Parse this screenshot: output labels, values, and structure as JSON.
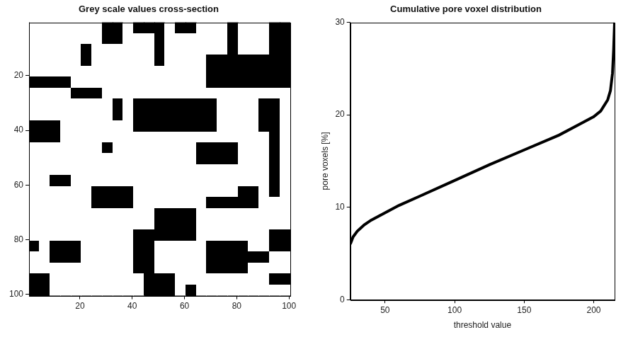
{
  "chart_data": [
    {
      "type": "heatmap",
      "title": "Grey scale values cross-section",
      "xlim": [
        0.5,
        100.5
      ],
      "ylim": [
        100.5,
        0.5
      ],
      "xticks": [
        20,
        40,
        60,
        80,
        100
      ],
      "yticks": [
        20,
        40,
        60,
        80,
        100
      ],
      "grid": false,
      "cells": [
        [
          255,
          255,
          255,
          255,
          255,
          255,
          255,
          0,
          0,
          255,
          0,
          0,
          0,
          255,
          0,
          0,
          255,
          255,
          255,
          0,
          255,
          255,
          255,
          0,
          0
        ],
        [
          255,
          255,
          255,
          255,
          255,
          255,
          255,
          0,
          0,
          255,
          255,
          255,
          0,
          255,
          255,
          255,
          255,
          255,
          255,
          0,
          255,
          255,
          255,
          0,
          0
        ],
        [
          255,
          255,
          255,
          255,
          255,
          0,
          255,
          255,
          255,
          255,
          255,
          255,
          0,
          255,
          255,
          255,
          255,
          255,
          255,
          0,
          255,
          255,
          255,
          0,
          0
        ],
        [
          255,
          255,
          255,
          255,
          255,
          0,
          255,
          255,
          255,
          255,
          255,
          255,
          0,
          255,
          255,
          255,
          255,
          0,
          0,
          0,
          0,
          0,
          0,
          0,
          0
        ],
        [
          255,
          255,
          255,
          255,
          255,
          255,
          255,
          255,
          255,
          255,
          255,
          255,
          255,
          255,
          255,
          255,
          255,
          0,
          0,
          0,
          0,
          0,
          0,
          0,
          0
        ],
        [
          0,
          0,
          0,
          0,
          255,
          255,
          255,
          255,
          255,
          255,
          255,
          255,
          255,
          255,
          255,
          255,
          255,
          0,
          0,
          0,
          0,
          0,
          0,
          0,
          0
        ],
        [
          255,
          255,
          255,
          255,
          0,
          0,
          0,
          255,
          255,
          255,
          255,
          255,
          255,
          255,
          255,
          255,
          255,
          255,
          255,
          255,
          255,
          255,
          255,
          255,
          255
        ],
        [
          255,
          255,
          255,
          255,
          255,
          255,
          255,
          255,
          0,
          255,
          0,
          0,
          0,
          0,
          0,
          0,
          0,
          0,
          255,
          255,
          255,
          255,
          0,
          0,
          255
        ],
        [
          255,
          255,
          255,
          255,
          255,
          255,
          255,
          255,
          0,
          255,
          0,
          0,
          0,
          0,
          0,
          0,
          0,
          0,
          255,
          255,
          255,
          255,
          0,
          0,
          255
        ],
        [
          0,
          0,
          0,
          255,
          255,
          255,
          255,
          255,
          255,
          255,
          0,
          0,
          0,
          0,
          0,
          0,
          0,
          0,
          255,
          255,
          255,
          255,
          0,
          0,
          255
        ],
        [
          0,
          0,
          0,
          255,
          255,
          255,
          255,
          255,
          255,
          255,
          255,
          255,
          255,
          255,
          255,
          255,
          255,
          255,
          255,
          255,
          255,
          255,
          255,
          0,
          255
        ],
        [
          255,
          255,
          255,
          255,
          255,
          255,
          255,
          0,
          255,
          255,
          255,
          255,
          255,
          255,
          255,
          255,
          0,
          0,
          0,
          0,
          255,
          255,
          255,
          0,
          255
        ],
        [
          255,
          255,
          255,
          255,
          255,
          255,
          255,
          255,
          255,
          255,
          255,
          255,
          255,
          255,
          255,
          255,
          0,
          0,
          0,
          0,
          255,
          255,
          255,
          0,
          255
        ],
        [
          255,
          255,
          255,
          255,
          255,
          255,
          255,
          255,
          255,
          255,
          255,
          255,
          255,
          255,
          255,
          255,
          255,
          255,
          255,
          255,
          255,
          255,
          255,
          0,
          255
        ],
        [
          255,
          255,
          0,
          0,
          255,
          255,
          255,
          255,
          255,
          255,
          255,
          255,
          255,
          255,
          255,
          255,
          255,
          255,
          255,
          255,
          255,
          255,
          255,
          0,
          255
        ],
        [
          255,
          255,
          255,
          255,
          255,
          255,
          0,
          0,
          0,
          0,
          255,
          255,
          255,
          255,
          255,
          255,
          255,
          255,
          255,
          255,
          0,
          0,
          255,
          0,
          255
        ],
        [
          255,
          255,
          255,
          255,
          255,
          255,
          0,
          0,
          0,
          0,
          255,
          255,
          255,
          255,
          255,
          255,
          255,
          0,
          0,
          0,
          0,
          0,
          255,
          255,
          255
        ],
        [
          255,
          255,
          255,
          255,
          255,
          255,
          255,
          255,
          255,
          255,
          255,
          255,
          0,
          0,
          0,
          0,
          255,
          255,
          255,
          255,
          255,
          255,
          255,
          255,
          255
        ],
        [
          255,
          255,
          255,
          255,
          255,
          255,
          255,
          255,
          255,
          255,
          255,
          255,
          0,
          0,
          0,
          0,
          255,
          255,
          255,
          255,
          255,
          255,
          255,
          255,
          255
        ],
        [
          255,
          255,
          255,
          255,
          255,
          255,
          255,
          255,
          255,
          255,
          0,
          0,
          0,
          0,
          0,
          0,
          255,
          255,
          255,
          255,
          255,
          255,
          255,
          0,
          0
        ],
        [
          0,
          255,
          0,
          0,
          0,
          255,
          255,
          255,
          255,
          255,
          0,
          0,
          255,
          255,
          255,
          255,
          255,
          0,
          0,
          0,
          0,
          255,
          255,
          0,
          0
        ],
        [
          255,
          255,
          0,
          0,
          0,
          255,
          255,
          255,
          255,
          255,
          0,
          0,
          255,
          255,
          255,
          255,
          255,
          0,
          0,
          0,
          0,
          0,
          0,
          255,
          255
        ],
        [
          255,
          255,
          255,
          255,
          255,
          255,
          255,
          255,
          255,
          255,
          0,
          0,
          255,
          255,
          255,
          255,
          255,
          0,
          0,
          0,
          0,
          255,
          255,
          255,
          255
        ],
        [
          0,
          0,
          255,
          255,
          255,
          255,
          255,
          255,
          255,
          255,
          255,
          0,
          0,
          0,
          255,
          255,
          255,
          255,
          255,
          255,
          255,
          255,
          255,
          0,
          0
        ],
        [
          0,
          0,
          255,
          255,
          255,
          255,
          255,
          255,
          255,
          255,
          255,
          0,
          0,
          0,
          255,
          0,
          255,
          255,
          255,
          255,
          255,
          255,
          255,
          255,
          255
        ]
      ]
    },
    {
      "type": "line",
      "title": "Cumulative pore voxel distribution",
      "x_label": "threshold value",
      "y_label": "pore voxels [%]",
      "x": [
        25,
        27,
        30,
        35,
        40,
        50,
        60,
        75,
        100,
        125,
        150,
        175,
        190,
        200,
        205,
        210,
        212,
        213.5,
        214.3,
        215
      ],
      "values": [
        6.0,
        6.8,
        7.4,
        8.1,
        8.6,
        9.4,
        10.2,
        11.2,
        12.9,
        14.6,
        16.2,
        17.8,
        19.0,
        19.8,
        20.4,
        21.6,
        22.6,
        24.5,
        27,
        30
      ],
      "xlim": [
        25,
        215
      ],
      "ylim": [
        0,
        30
      ],
      "xticks": [
        50,
        100,
        150,
        200
      ],
      "yticks": [
        0,
        10,
        20,
        30
      ],
      "color": "#000000",
      "grid": false
    }
  ]
}
